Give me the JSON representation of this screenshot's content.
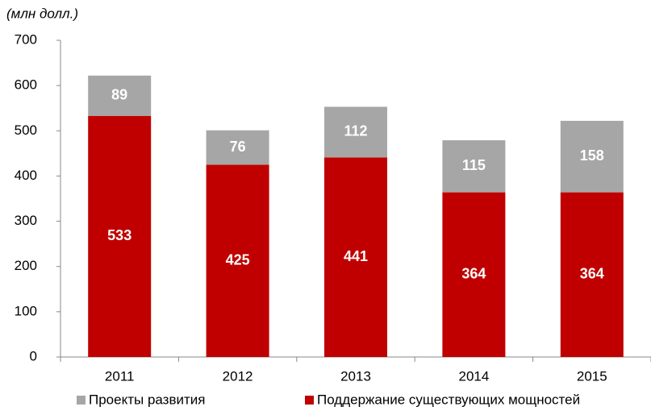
{
  "chart_data": {
    "type": "stacked_bar",
    "title": "(млн долл.)",
    "categories": [
      "2011",
      "2012",
      "2013",
      "2014",
      "2015"
    ],
    "series": [
      {
        "name": "Поддержание существующих мощностей",
        "color": "#c00000",
        "values": [
          533,
          425,
          441,
          364,
          364
        ]
      },
      {
        "name": "Проекты развития",
        "color": "#a6a6a6",
        "values": [
          89,
          76,
          112,
          115,
          158
        ]
      }
    ],
    "ylim": [
      0,
      700
    ],
    "yticks": [
      0,
      100,
      200,
      300,
      400,
      500,
      600,
      700
    ],
    "grid": false
  }
}
